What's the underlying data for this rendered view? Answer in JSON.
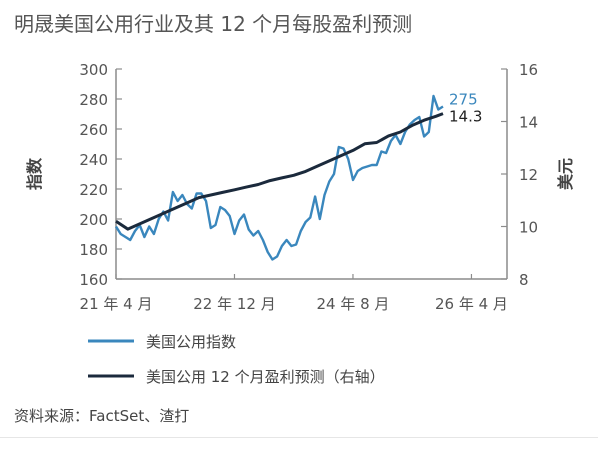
{
  "source": "资料来源：FactSet、渣打",
  "chart_data": {
    "type": "line",
    "title": "明晟美国公用行业及其 12 个月每股盈利预测",
    "ylabel_left": "指数",
    "ylabel_right": "美元",
    "ylim_left": [
      160,
      300
    ],
    "ylim_right": [
      8,
      16
    ],
    "yticks_left": [
      160,
      180,
      200,
      220,
      240,
      260,
      280,
      300
    ],
    "yticks_right": [
      8,
      10,
      12,
      14,
      16
    ],
    "x_range": [
      0,
      66
    ],
    "x_ticks": [
      {
        "x": 0,
        "label": "21 年 4 月"
      },
      {
        "x": 20,
        "label": "22 年 12 月"
      },
      {
        "x": 40,
        "label": "24 年 8 月"
      },
      {
        "x": 60,
        "label": "26 年 4 月"
      }
    ],
    "grid": false,
    "legend_position": "bottom",
    "series": [
      {
        "name": "美国公用指数",
        "axis": "left",
        "color": "#3a87bd",
        "end_label": "275",
        "points": [
          [
            0,
            195
          ],
          [
            0.8,
            190
          ],
          [
            1.6,
            188
          ],
          [
            2.4,
            186
          ],
          [
            3.2,
            192
          ],
          [
            4,
            196
          ],
          [
            4.8,
            188
          ],
          [
            5.6,
            195
          ],
          [
            6.4,
            190
          ],
          [
            7.2,
            200
          ],
          [
            8,
            205
          ],
          [
            8.8,
            199
          ],
          [
            9.6,
            218
          ],
          [
            10.4,
            212
          ],
          [
            11.2,
            216
          ],
          [
            12,
            210
          ],
          [
            12.8,
            207
          ],
          [
            13.6,
            217
          ],
          [
            14.4,
            217
          ],
          [
            15.2,
            212
          ],
          [
            16,
            194
          ],
          [
            16.8,
            196
          ],
          [
            17.6,
            208
          ],
          [
            18.4,
            206
          ],
          [
            19.2,
            202
          ],
          [
            20,
            190
          ],
          [
            20.8,
            199
          ],
          [
            21.6,
            203
          ],
          [
            22.4,
            193
          ],
          [
            23.2,
            189
          ],
          [
            24,
            192
          ],
          [
            24.8,
            186
          ],
          [
            25.6,
            178
          ],
          [
            26.4,
            173
          ],
          [
            27.2,
            175
          ],
          [
            28,
            182
          ],
          [
            28.8,
            186
          ],
          [
            29.6,
            182
          ],
          [
            30.4,
            183
          ],
          [
            31.2,
            192
          ],
          [
            32,
            198
          ],
          [
            32.8,
            201
          ],
          [
            33.6,
            215
          ],
          [
            34.4,
            200
          ],
          [
            35.2,
            216
          ],
          [
            36,
            225
          ],
          [
            36.8,
            230
          ],
          [
            37.6,
            248
          ],
          [
            38.4,
            247
          ],
          [
            39.2,
            240
          ],
          [
            40,
            226
          ],
          [
            40.8,
            232
          ],
          [
            41.6,
            234
          ],
          [
            42.4,
            235
          ],
          [
            43.2,
            236
          ],
          [
            44,
            236
          ],
          [
            44.8,
            245
          ],
          [
            45.6,
            244
          ],
          [
            46.4,
            252
          ],
          [
            47.2,
            256
          ],
          [
            48,
            250
          ],
          [
            48.8,
            258
          ],
          [
            49.6,
            263
          ],
          [
            50.4,
            266
          ],
          [
            51.2,
            268
          ],
          [
            52,
            255
          ],
          [
            52.8,
            258
          ],
          [
            53.6,
            282
          ],
          [
            54.4,
            273
          ],
          [
            55.2,
            275
          ]
        ]
      },
      {
        "name": "美国公用 12 个月盈利预测（右轴）",
        "axis": "right",
        "color": "#1b2a3c",
        "end_label": "14.3",
        "points": [
          [
            0,
            10.2
          ],
          [
            2,
            9.9
          ],
          [
            4,
            10.1
          ],
          [
            6,
            10.3
          ],
          [
            8,
            10.5
          ],
          [
            10,
            10.7
          ],
          [
            12,
            10.9
          ],
          [
            14,
            11.1
          ],
          [
            16,
            11.2
          ],
          [
            18,
            11.3
          ],
          [
            20,
            11.4
          ],
          [
            22,
            11.5
          ],
          [
            24,
            11.6
          ],
          [
            26,
            11.75
          ],
          [
            28,
            11.85
          ],
          [
            30,
            11.95
          ],
          [
            32,
            12.1
          ],
          [
            34,
            12.3
          ],
          [
            36,
            12.5
          ],
          [
            38,
            12.7
          ],
          [
            40,
            12.9
          ],
          [
            42,
            13.15
          ],
          [
            44,
            13.2
          ],
          [
            46,
            13.45
          ],
          [
            48,
            13.6
          ],
          [
            50,
            13.85
          ],
          [
            52,
            14.05
          ],
          [
            54,
            14.2
          ],
          [
            55.2,
            14.3
          ]
        ]
      }
    ]
  }
}
